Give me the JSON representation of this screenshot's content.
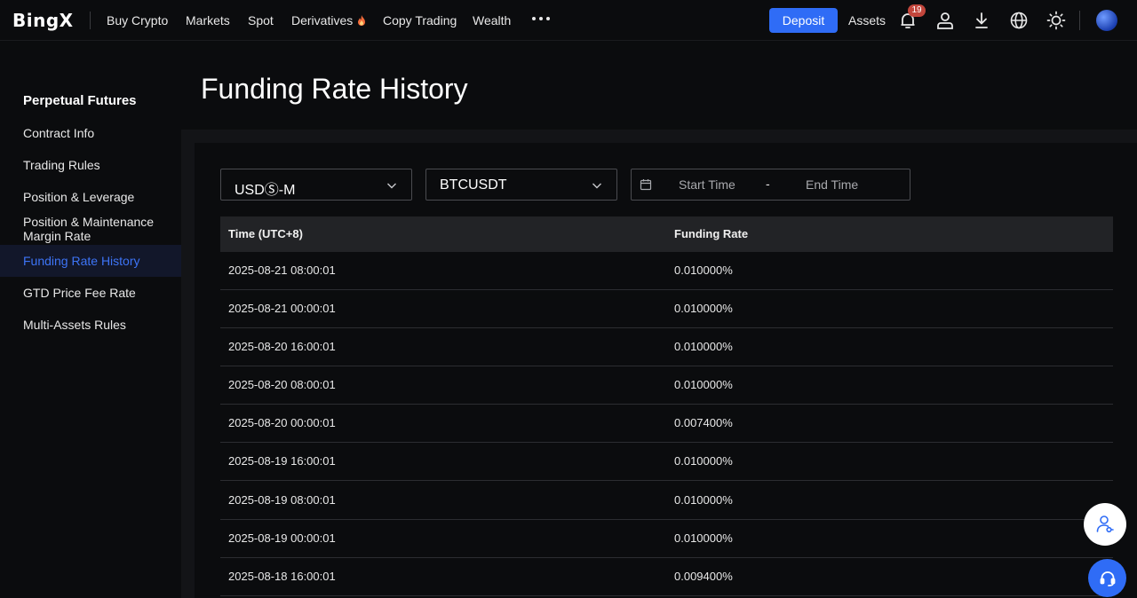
{
  "header": {
    "logo": "BingX",
    "nav": [
      {
        "label": "Buy Crypto"
      },
      {
        "label": "Markets"
      },
      {
        "label": "Spot"
      },
      {
        "label": "Derivatives"
      },
      {
        "label": "Copy Trading"
      },
      {
        "label": "Wealth"
      }
    ],
    "more_icon": "more-dots-icon",
    "deposit_label": "Deposit",
    "assets_label": "Assets",
    "notification_count": "19",
    "icons": [
      "bell-icon",
      "user-icon",
      "download-icon",
      "globe-icon",
      "sun-icon"
    ],
    "accent_color": "#2f6cf6"
  },
  "sidebar": {
    "title": "Perpetual Futures",
    "items": [
      {
        "label": "Contract Info"
      },
      {
        "label": "Trading Rules"
      },
      {
        "label": "Position & Leverage"
      },
      {
        "label": "Position & Maintenance Margin Rate"
      },
      {
        "label": "Funding Rate History",
        "active": true
      },
      {
        "label": "GTD Price Fee Rate"
      },
      {
        "label": "Multi-Assets Rules"
      }
    ]
  },
  "main": {
    "title": "Funding Rate History",
    "filters": {
      "margin_type": "USDⓈ-M",
      "symbol": "BTCUSDT",
      "start_placeholder": "Start Time",
      "separator": "-",
      "end_placeholder": "End Time"
    },
    "table": {
      "columns": [
        "Time (UTC+8)",
        "Funding Rate"
      ],
      "rows": [
        [
          "2025-08-21 08:00:01",
          "0.010000%"
        ],
        [
          "2025-08-21 00:00:01",
          "0.010000%"
        ],
        [
          "2025-08-20 16:00:01",
          "0.010000%"
        ],
        [
          "2025-08-20 08:00:01",
          "0.010000%"
        ],
        [
          "2025-08-20 00:00:01",
          "0.007400%"
        ],
        [
          "2025-08-19 16:00:01",
          "0.010000%"
        ],
        [
          "2025-08-19 08:00:01",
          "0.010000%"
        ],
        [
          "2025-08-19 00:00:01",
          "0.010000%"
        ],
        [
          "2025-08-18 16:00:01",
          "0.009400%"
        ]
      ]
    }
  }
}
